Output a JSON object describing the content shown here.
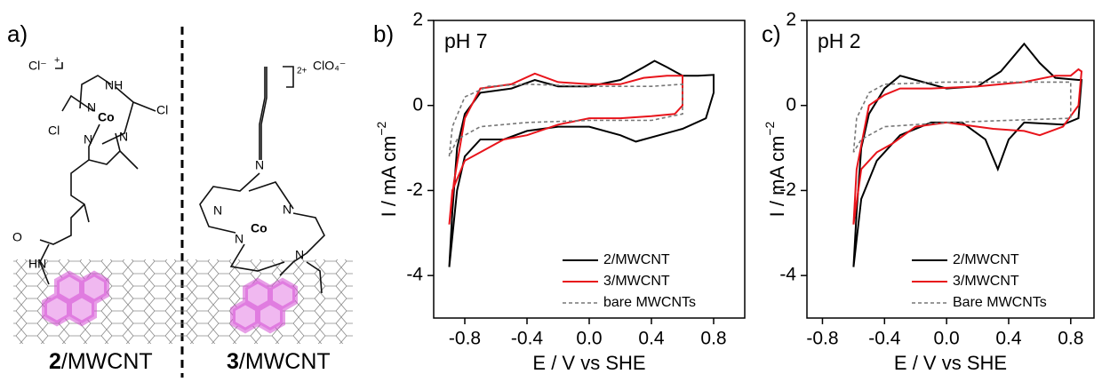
{
  "panel_a": {
    "label": "a)",
    "captions": [
      {
        "num": "2",
        "text": "/MWCNT"
      },
      {
        "num": "3",
        "text": "/MWCNT"
      }
    ],
    "atoms": [
      "Cl⁻",
      "+",
      "NH",
      "N",
      "Co",
      "Cl",
      "Cl",
      "N",
      "N",
      "O",
      "HN",
      "2+",
      "ClO₄⁻",
      "N",
      "N",
      "N",
      "Co",
      "N",
      "N"
    ]
  },
  "chart_data": [
    {
      "type": "line",
      "panel_label": "b)",
      "annotation": "pH 7",
      "xlabel": "E / V vs SHE",
      "ylabel": "I / mA cm",
      "ylabel_sup": "−2",
      "xlim": [
        -1.0,
        1.0
      ],
      "ylim": [
        -5,
        2
      ],
      "xticks": [
        -0.8,
        -0.4,
        {
          "value": 0,
          "label": "0.0"
        },
        0.4,
        0.8
      ],
      "yticks": [
        -4,
        -2,
        0,
        2
      ],
      "legend": "lower right",
      "series": [
        {
          "name": "2/MWCNT",
          "color": "#000000",
          "dashed": false,
          "x": [
            -0.9,
            -0.88,
            -0.85,
            -0.8,
            -0.7,
            -0.5,
            -0.35,
            -0.2,
            0,
            0.2,
            0.35,
            0.42,
            0.5,
            0.6,
            0.7,
            0.8,
            0.8,
            0.75,
            0.6,
            0.45,
            0.3,
            0.2,
            0,
            -0.2,
            -0.4,
            -0.55,
            -0.7,
            -0.8,
            -0.85,
            -0.9
          ],
          "values": [
            -3.8,
            -2.5,
            -1.0,
            -0.2,
            0.3,
            0.4,
            0.6,
            0.45,
            0.45,
            0.6,
            0.9,
            1.05,
            0.9,
            0.7,
            0.7,
            0.72,
            0.3,
            -0.3,
            -0.55,
            -0.7,
            -0.85,
            -0.7,
            -0.5,
            -0.5,
            -0.6,
            -0.8,
            -0.8,
            -1.2,
            -2.0,
            -3.8
          ]
        },
        {
          "name": "3/MWCNT",
          "color": "#e8141b",
          "dashed": false,
          "x": [
            -0.9,
            -0.87,
            -0.8,
            -0.7,
            -0.5,
            -0.35,
            -0.2,
            0,
            0.2,
            0.35,
            0.5,
            0.6,
            0.6,
            0.55,
            0.4,
            0.2,
            0,
            -0.2,
            -0.4,
            -0.55,
            -0.7,
            -0.8,
            -0.88,
            -0.9
          ],
          "values": [
            -2.8,
            -1.8,
            -0.3,
            0.4,
            0.5,
            0.75,
            0.55,
            0.5,
            0.5,
            0.65,
            0.7,
            0.7,
            0.0,
            -0.2,
            -0.25,
            -0.3,
            -0.3,
            -0.45,
            -0.7,
            -0.8,
            -1.1,
            -1.3,
            -2.0,
            -2.8
          ]
        },
        {
          "name": "bare MWCNTs",
          "color": "#777777",
          "dashed": true,
          "x": [
            -0.9,
            -0.88,
            -0.8,
            -0.65,
            -0.4,
            0,
            0.4,
            0.6,
            0.6,
            0.4,
            0,
            -0.4,
            -0.7,
            -0.85,
            -0.9
          ],
          "values": [
            -1.2,
            -0.5,
            0.2,
            0.45,
            0.5,
            0.45,
            0.45,
            0.5,
            -0.2,
            -0.35,
            -0.35,
            -0.4,
            -0.5,
            -0.8,
            -1.2
          ]
        }
      ]
    },
    {
      "type": "line",
      "panel_label": "c)",
      "annotation": "pH 2",
      "xlabel": "E / V vs SHE",
      "ylabel": "I / mA cm",
      "ylabel_sup": "−2",
      "xlim": [
        -0.9,
        0.95
      ],
      "ylim": [
        -5,
        2
      ],
      "xticks": [
        -0.8,
        -0.4,
        {
          "value": 0,
          "label": "0.0"
        },
        0.4,
        0.8
      ],
      "yticks": [
        -4,
        -2,
        0,
        2
      ],
      "legend": "lower right",
      "series": [
        {
          "name": "2/MWCNT",
          "color": "#000000",
          "dashed": false,
          "x": [
            -0.6,
            -0.58,
            -0.55,
            -0.5,
            -0.4,
            -0.3,
            -0.2,
            0,
            0.2,
            0.35,
            0.5,
            0.6,
            0.7,
            0.85,
            0.87,
            0.85,
            0.75,
            0.5,
            0.4,
            0.33,
            0.25,
            0.1,
            -0.1,
            -0.3,
            -0.45,
            -0.55,
            -0.6
          ],
          "values": [
            -3.8,
            -2.5,
            -1.0,
            -0.2,
            0.4,
            0.7,
            0.6,
            0.4,
            0.45,
            0.8,
            1.45,
            1.0,
            0.65,
            0.6,
            0.6,
            -0.3,
            -0.45,
            -0.4,
            -0.8,
            -1.5,
            -0.8,
            -0.4,
            -0.4,
            -0.7,
            -1.3,
            -2.2,
            -3.8
          ]
        },
        {
          "name": "3/MWCNT",
          "color": "#e8141b",
          "dashed": false,
          "x": [
            -0.6,
            -0.58,
            -0.5,
            -0.4,
            -0.3,
            -0.1,
            0.2,
            0.5,
            0.7,
            0.8,
            0.85,
            0.87,
            0.85,
            0.75,
            0.6,
            0.5,
            0.3,
            0,
            -0.2,
            -0.35,
            -0.45,
            -0.55,
            -0.6
          ],
          "values": [
            -2.8,
            -1.5,
            0,
            0.25,
            0.4,
            0.4,
            0.45,
            0.55,
            0.7,
            0.7,
            0.85,
            0.8,
            0.0,
            -0.5,
            -0.7,
            -0.6,
            -0.55,
            -0.4,
            -0.5,
            -0.9,
            -1.1,
            -1.5,
            -2.8
          ]
        },
        {
          "name": "Bare MWCNTs",
          "color": "#777777",
          "dashed": true,
          "x": [
            -0.6,
            -0.58,
            -0.5,
            -0.4,
            0,
            0.4,
            0.8,
            0.8,
            0.4,
            0,
            -0.4,
            -0.55,
            -0.6
          ],
          "values": [
            -1.1,
            -0.3,
            0.3,
            0.5,
            0.55,
            0.55,
            0.55,
            -0.3,
            -0.35,
            -0.4,
            -0.5,
            -0.8,
            -1.1
          ]
        }
      ]
    }
  ]
}
